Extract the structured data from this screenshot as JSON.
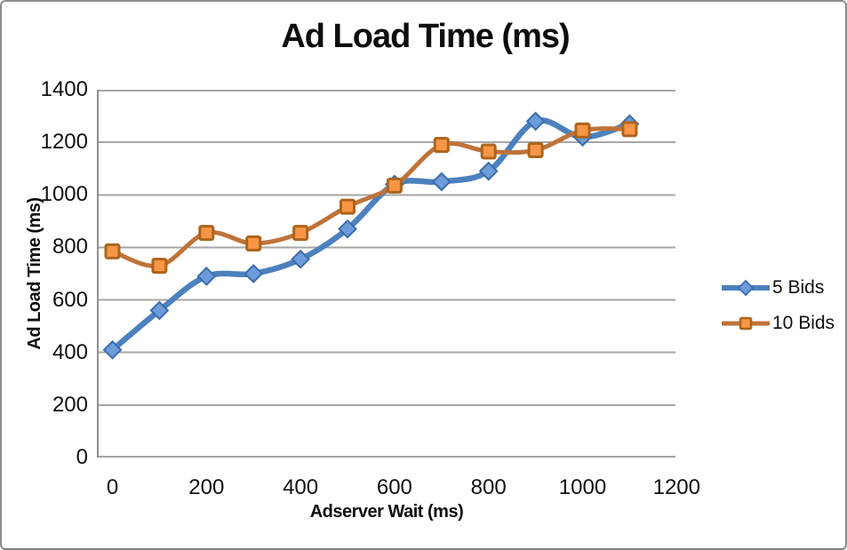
{
  "chart_data": {
    "type": "line",
    "title": "Ad Load Time (ms)",
    "xlabel": "Adserver Wait (ms)",
    "ylabel": "Ad Load Time (ms)",
    "x": [
      0,
      100,
      200,
      300,
      400,
      500,
      600,
      700,
      800,
      900,
      1000,
      1100
    ],
    "series": [
      {
        "name": "5 Bids",
        "values": [
          410,
          560,
          690,
          700,
          755,
          870,
          1040,
          1050,
          1090,
          1280,
          1220,
          1270
        ],
        "line_color": "#4C81BE",
        "marker": "diamond",
        "marker_fill": "#6C9CD9",
        "marker_stroke": "#3C6CAC"
      },
      {
        "name": "10 Bids",
        "values": [
          785,
          730,
          855,
          815,
          855,
          955,
          1035,
          1190,
          1165,
          1170,
          1245,
          1250
        ],
        "line_color": "#BE7339",
        "marker": "square",
        "marker_fill": "#F79646",
        "marker_stroke": "#AC641C"
      }
    ],
    "xticks": [
      0,
      200,
      400,
      600,
      800,
      1000,
      1200
    ],
    "yticks": [
      0,
      200,
      400,
      600,
      800,
      1000,
      1200,
      1400
    ],
    "ylim": [
      0,
      1400
    ],
    "grid": "horizontal",
    "legend_position": "right",
    "smoothed": true
  },
  "styles": {
    "grid_color": "#A6A6A6",
    "axis_color": "#909090",
    "text_color": "#101010",
    "frame_border_color": "#8D8D8D",
    "background": "#FFFFFF"
  }
}
